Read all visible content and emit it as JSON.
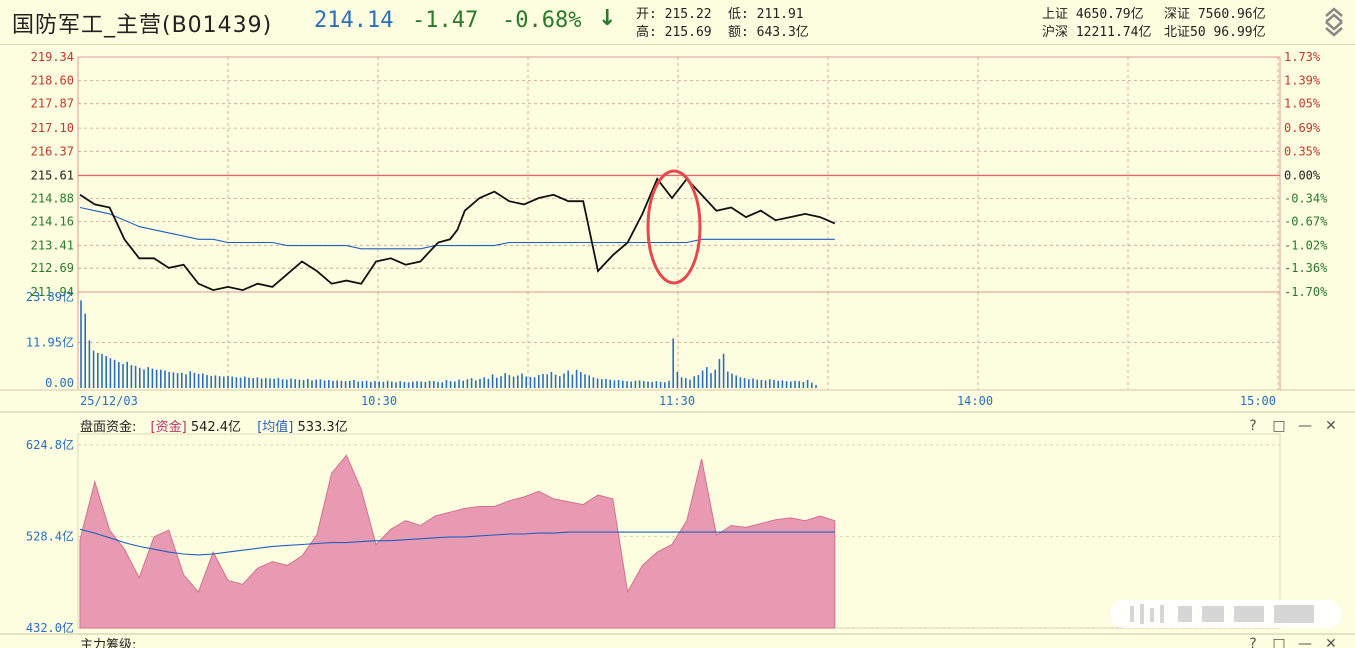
{
  "header": {
    "name": "国防军工_主营(B01439)",
    "price": "214.14",
    "change": "-1.47",
    "change_pct": "-0.68%",
    "arrow": "↓",
    "open_label": "开:",
    "open": "215.22",
    "low_label": "低:",
    "low": "211.91",
    "high_label": "高:",
    "high": "215.69",
    "amount_label": "额:",
    "amount": "643.3亿",
    "sh_label": "上证",
    "sh": "4650.79亿",
    "sz_label": "深证",
    "sz": "7560.96亿",
    "hs_label": "沪深",
    "hs": "12211.74亿",
    "nb_label": "北证50",
    "nb": "96.99亿"
  },
  "price_axis": {
    "left": [
      "219.34",
      "218.60",
      "217.87",
      "217.10",
      "216.37",
      "215.61",
      "214.88",
      "214.16",
      "213.41",
      "212.69",
      "211.94"
    ],
    "right": [
      "1.73%",
      "1.39%",
      "1.05%",
      "0.69%",
      "0.35%",
      "0.00%",
      "-0.34%",
      "-0.67%",
      "-1.02%",
      "-1.36%",
      "-1.70%"
    ],
    "prev_close": 215.61
  },
  "volume_axis": [
    "23.89亿",
    "11.95亿",
    "0.00"
  ],
  "time_axis": [
    "25/12/03",
    "10:30",
    "11:30",
    "14:00",
    "15:00"
  ],
  "capital_panel": {
    "title": "盘面资金:",
    "tag1": "[资金]",
    "val1": "542.4亿",
    "tag2": "[均值]",
    "val2": "533.3亿",
    "axis": [
      "624.8亿",
      "528.4亿",
      "432.0亿"
    ]
  },
  "bottom_panel": {
    "title": "主力筹级:"
  },
  "panel_icons": [
    "?",
    "□",
    "—",
    "✕"
  ],
  "colors": {
    "price_line": "#111111",
    "avg_line": "#1f5fbf",
    "grid": "#d99a9a",
    "area": "#e89ab2",
    "up": "#c0392b",
    "down": "#2a7a2a",
    "vol": "#2a6fbf"
  },
  "chart_data": [
    {
      "type": "line",
      "title": "",
      "x": [
        0,
        10,
        20,
        30,
        40,
        50,
        60,
        70,
        80,
        90,
        100,
        110,
        120,
        130,
        140,
        150,
        160,
        170,
        180,
        190,
        200,
        210,
        220,
        230,
        240,
        242,
        250,
        255,
        260,
        270,
        280,
        290,
        300,
        310,
        320,
        330,
        340,
        350,
        360,
        370,
        380,
        390,
        400,
        410,
        420,
        430,
        440,
        450,
        460,
        470,
        480,
        490,
        500,
        510
      ],
      "series": [
        {
          "values": [
            215.0,
            214.7,
            214.6,
            213.6,
            213.0,
            213.0,
            212.7,
            212.8,
            212.2,
            212.0,
            212.1,
            212.0,
            212.2,
            212.1,
            212.5,
            212.9,
            212.6,
            212.2,
            212.3,
            212.2,
            212.9,
            213.0,
            212.8,
            212.9,
            213.4,
            213.5,
            213.6,
            213.9,
            214.5,
            214.9,
            215.1,
            214.8,
            214.7,
            214.9,
            215.0,
            214.8,
            214.8,
            212.6,
            213.1,
            213.5,
            214.4,
            215.5,
            214.9,
            215.5,
            215.0,
            214.5,
            214.6,
            214.3,
            214.5,
            214.2,
            214.3,
            214.4,
            214.3,
            214.1
          ]
        },
        {
          "values": [
            214.6,
            214.5,
            214.4,
            214.2,
            214.0,
            213.9,
            213.8,
            213.7,
            213.6,
            213.6,
            213.5,
            213.5,
            213.5,
            213.5,
            213.4,
            213.4,
            213.4,
            213.4,
            213.4,
            213.3,
            213.3,
            213.3,
            213.3,
            213.3,
            213.4,
            213.4,
            213.4,
            213.4,
            213.4,
            213.4,
            213.4,
            213.5,
            213.5,
            213.5,
            213.5,
            213.5,
            213.5,
            213.5,
            213.5,
            213.5,
            213.5,
            213.5,
            213.5,
            213.5,
            213.6,
            213.6,
            213.6,
            213.6,
            213.6,
            213.6,
            213.6,
            213.6,
            213.6,
            213.6
          ]
        }
      ],
      "ylim": [
        211.94,
        219.34
      ]
    },
    {
      "type": "bar",
      "title": "",
      "values": [
        23.0,
        19.5,
        12.5,
        9.8,
        9.2,
        8.9,
        8.4,
        7.8,
        7.4,
        6.8,
        6.3,
        6.9,
        6.0,
        5.8,
        5.3,
        4.9,
        5.5,
        5.1,
        4.8,
        4.8,
        4.6,
        4.2,
        4.1,
        3.9,
        4.0,
        3.6,
        4.4,
        4.0,
        3.7,
        3.8,
        3.4,
        3.2,
        3.3,
        3.1,
        3.0,
        3.2,
        3.0,
        2.8,
        2.7,
        3.0,
        2.7,
        2.6,
        2.8,
        2.5,
        2.6,
        2.5,
        2.4,
        2.6,
        2.3,
        2.2,
        2.5,
        2.3,
        2.2,
        2.1,
        2.4,
        2.0,
        2.2,
        2.3,
        2.0,
        2.1,
        1.9,
        2.0,
        1.9,
        1.8,
        1.9,
        2.1,
        1.7,
        1.8,
        1.9,
        1.6,
        1.8,
        1.7,
        1.6,
        1.9,
        1.7,
        1.5,
        1.8,
        1.6,
        1.5,
        1.7,
        1.8,
        1.7,
        1.6,
        1.9,
        1.8,
        1.6,
        1.5,
        2.1,
        1.8,
        1.7,
        2.2,
        1.9,
        2.3,
        2.6,
        2.0,
        2.4,
        2.8,
        2.4,
        3.6,
        2.7,
        3.1,
        3.9,
        3.4,
        3.0,
        3.3,
        3.8,
        3.0,
        2.9,
        2.8,
        3.4,
        3.7,
        3.6,
        4.2,
        3.5,
        3.1,
        3.8,
        4.6,
        3.5,
        4.8,
        4.2,
        3.6,
        3.3,
        2.8,
        2.5,
        2.3,
        2.4,
        2.2,
        2.0,
        2.1,
        1.9,
        1.8,
        1.7,
        1.9,
        2.0,
        1.8,
        1.7,
        1.6,
        1.8,
        1.6,
        1.5,
        1.9,
        13.0,
        4.2,
        2.8,
        2.6,
        2.2,
        3.1,
        3.4,
        4.6,
        5.5,
        3.9,
        4.8,
        7.6,
        9.0,
        4.3,
        3.8,
        3.3,
        2.8,
        2.6,
        2.3,
        2.5,
        2.2,
        2.1,
        2.0,
        2.3,
        2.1,
        1.9,
        2.0,
        1.8,
        1.7,
        1.9,
        1.8,
        1.6,
        2.1,
        1.4,
        0.8
      ],
      "ylim": [
        0,
        23.89
      ]
    },
    {
      "type": "area",
      "title": "",
      "x": [
        0,
        10,
        20,
        30,
        40,
        50,
        60,
        70,
        80,
        90,
        100,
        110,
        120,
        130,
        140,
        150,
        160,
        170,
        180,
        190,
        200,
        210,
        220,
        230,
        240,
        250,
        260,
        270,
        280,
        290,
        300,
        310,
        320,
        330,
        340,
        350,
        360,
        370,
        380,
        390,
        400,
        410,
        420,
        430,
        440,
        450,
        460,
        470,
        480,
        490,
        500,
        510
      ],
      "series": [
        {
          "values": [
            525,
            586,
            535,
            515,
            485,
            528,
            535,
            488,
            470,
            512,
            482,
            478,
            495,
            502,
            498,
            508,
            530,
            595,
            614,
            578,
            520,
            536,
            545,
            540,
            550,
            554,
            558,
            560,
            560,
            566,
            570,
            576,
            568,
            565,
            562,
            572,
            568,
            470,
            498,
            512,
            520,
            545,
            610,
            530,
            540,
            538,
            542,
            546,
            548,
            545,
            550,
            545
          ]
        },
        {
          "values": [
            536,
            532,
            527,
            522,
            518,
            515,
            512,
            510,
            509,
            510,
            512,
            514,
            516,
            518,
            519,
            520,
            521,
            522,
            522,
            523,
            524,
            524,
            525,
            526,
            527,
            528,
            528,
            529,
            530,
            531,
            531,
            532,
            532,
            533,
            533,
            533,
            533,
            533,
            533,
            533,
            533,
            533,
            533,
            533,
            533,
            533,
            533,
            533,
            533,
            533,
            533,
            533
          ]
        }
      ],
      "ylim": [
        432.0,
        624.8
      ]
    }
  ]
}
